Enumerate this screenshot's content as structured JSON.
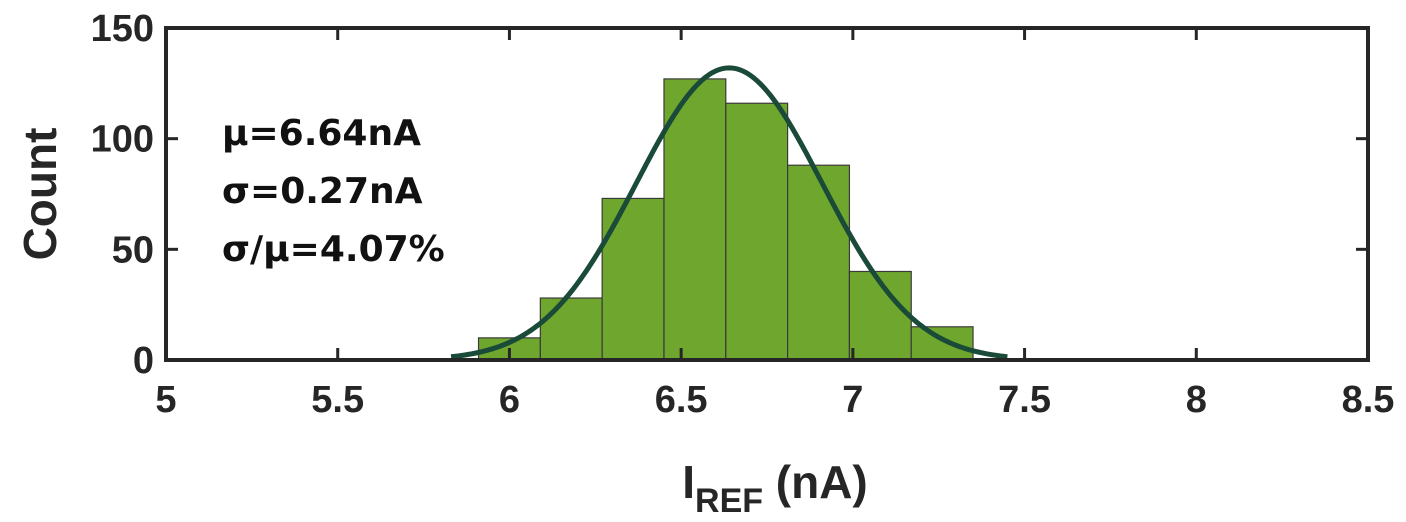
{
  "chart_data": {
    "type": "bar",
    "title": "",
    "xlabel": {
      "main": "I",
      "subscript": "REF",
      "suffix": " (nA)"
    },
    "ylabel": "Count",
    "xlim": [
      5,
      8.5
    ],
    "ylim": [
      0,
      150
    ],
    "xticks": [
      5,
      5.5,
      6,
      6.5,
      7,
      7.5,
      8,
      8.5
    ],
    "xtick_labels": [
      "5",
      "5.5",
      "6",
      "6.5",
      "7",
      "7.5",
      "8",
      "8.5"
    ],
    "yticks": [
      0,
      50,
      100,
      150
    ],
    "ytick_labels": [
      "0",
      "50",
      "100",
      "150"
    ],
    "grid": false,
    "bar_color": "#6fa72e",
    "bar_edge_color": "#3a3a3a",
    "fit_color": "#1a4a38",
    "bins": [
      {
        "x0": 5.91,
        "x1": 6.09,
        "count": 10
      },
      {
        "x0": 6.09,
        "x1": 6.27,
        "count": 28
      },
      {
        "x0": 6.27,
        "x1": 6.45,
        "count": 73
      },
      {
        "x0": 6.45,
        "x1": 6.63,
        "count": 127
      },
      {
        "x0": 6.63,
        "x1": 6.81,
        "count": 116
      },
      {
        "x0": 6.81,
        "x1": 6.99,
        "count": 88
      },
      {
        "x0": 6.99,
        "x1": 7.17,
        "count": 40
      },
      {
        "x0": 7.17,
        "x1": 7.35,
        "count": 15
      }
    ],
    "fit": {
      "type": "normal",
      "mean": 6.64,
      "sigma": 0.27,
      "peak": 132,
      "x_range": [
        5.83,
        7.45
      ]
    },
    "annotations": [
      "μ=6.64nA",
      "σ=0.27nA",
      "σ/μ=4.07%"
    ]
  }
}
